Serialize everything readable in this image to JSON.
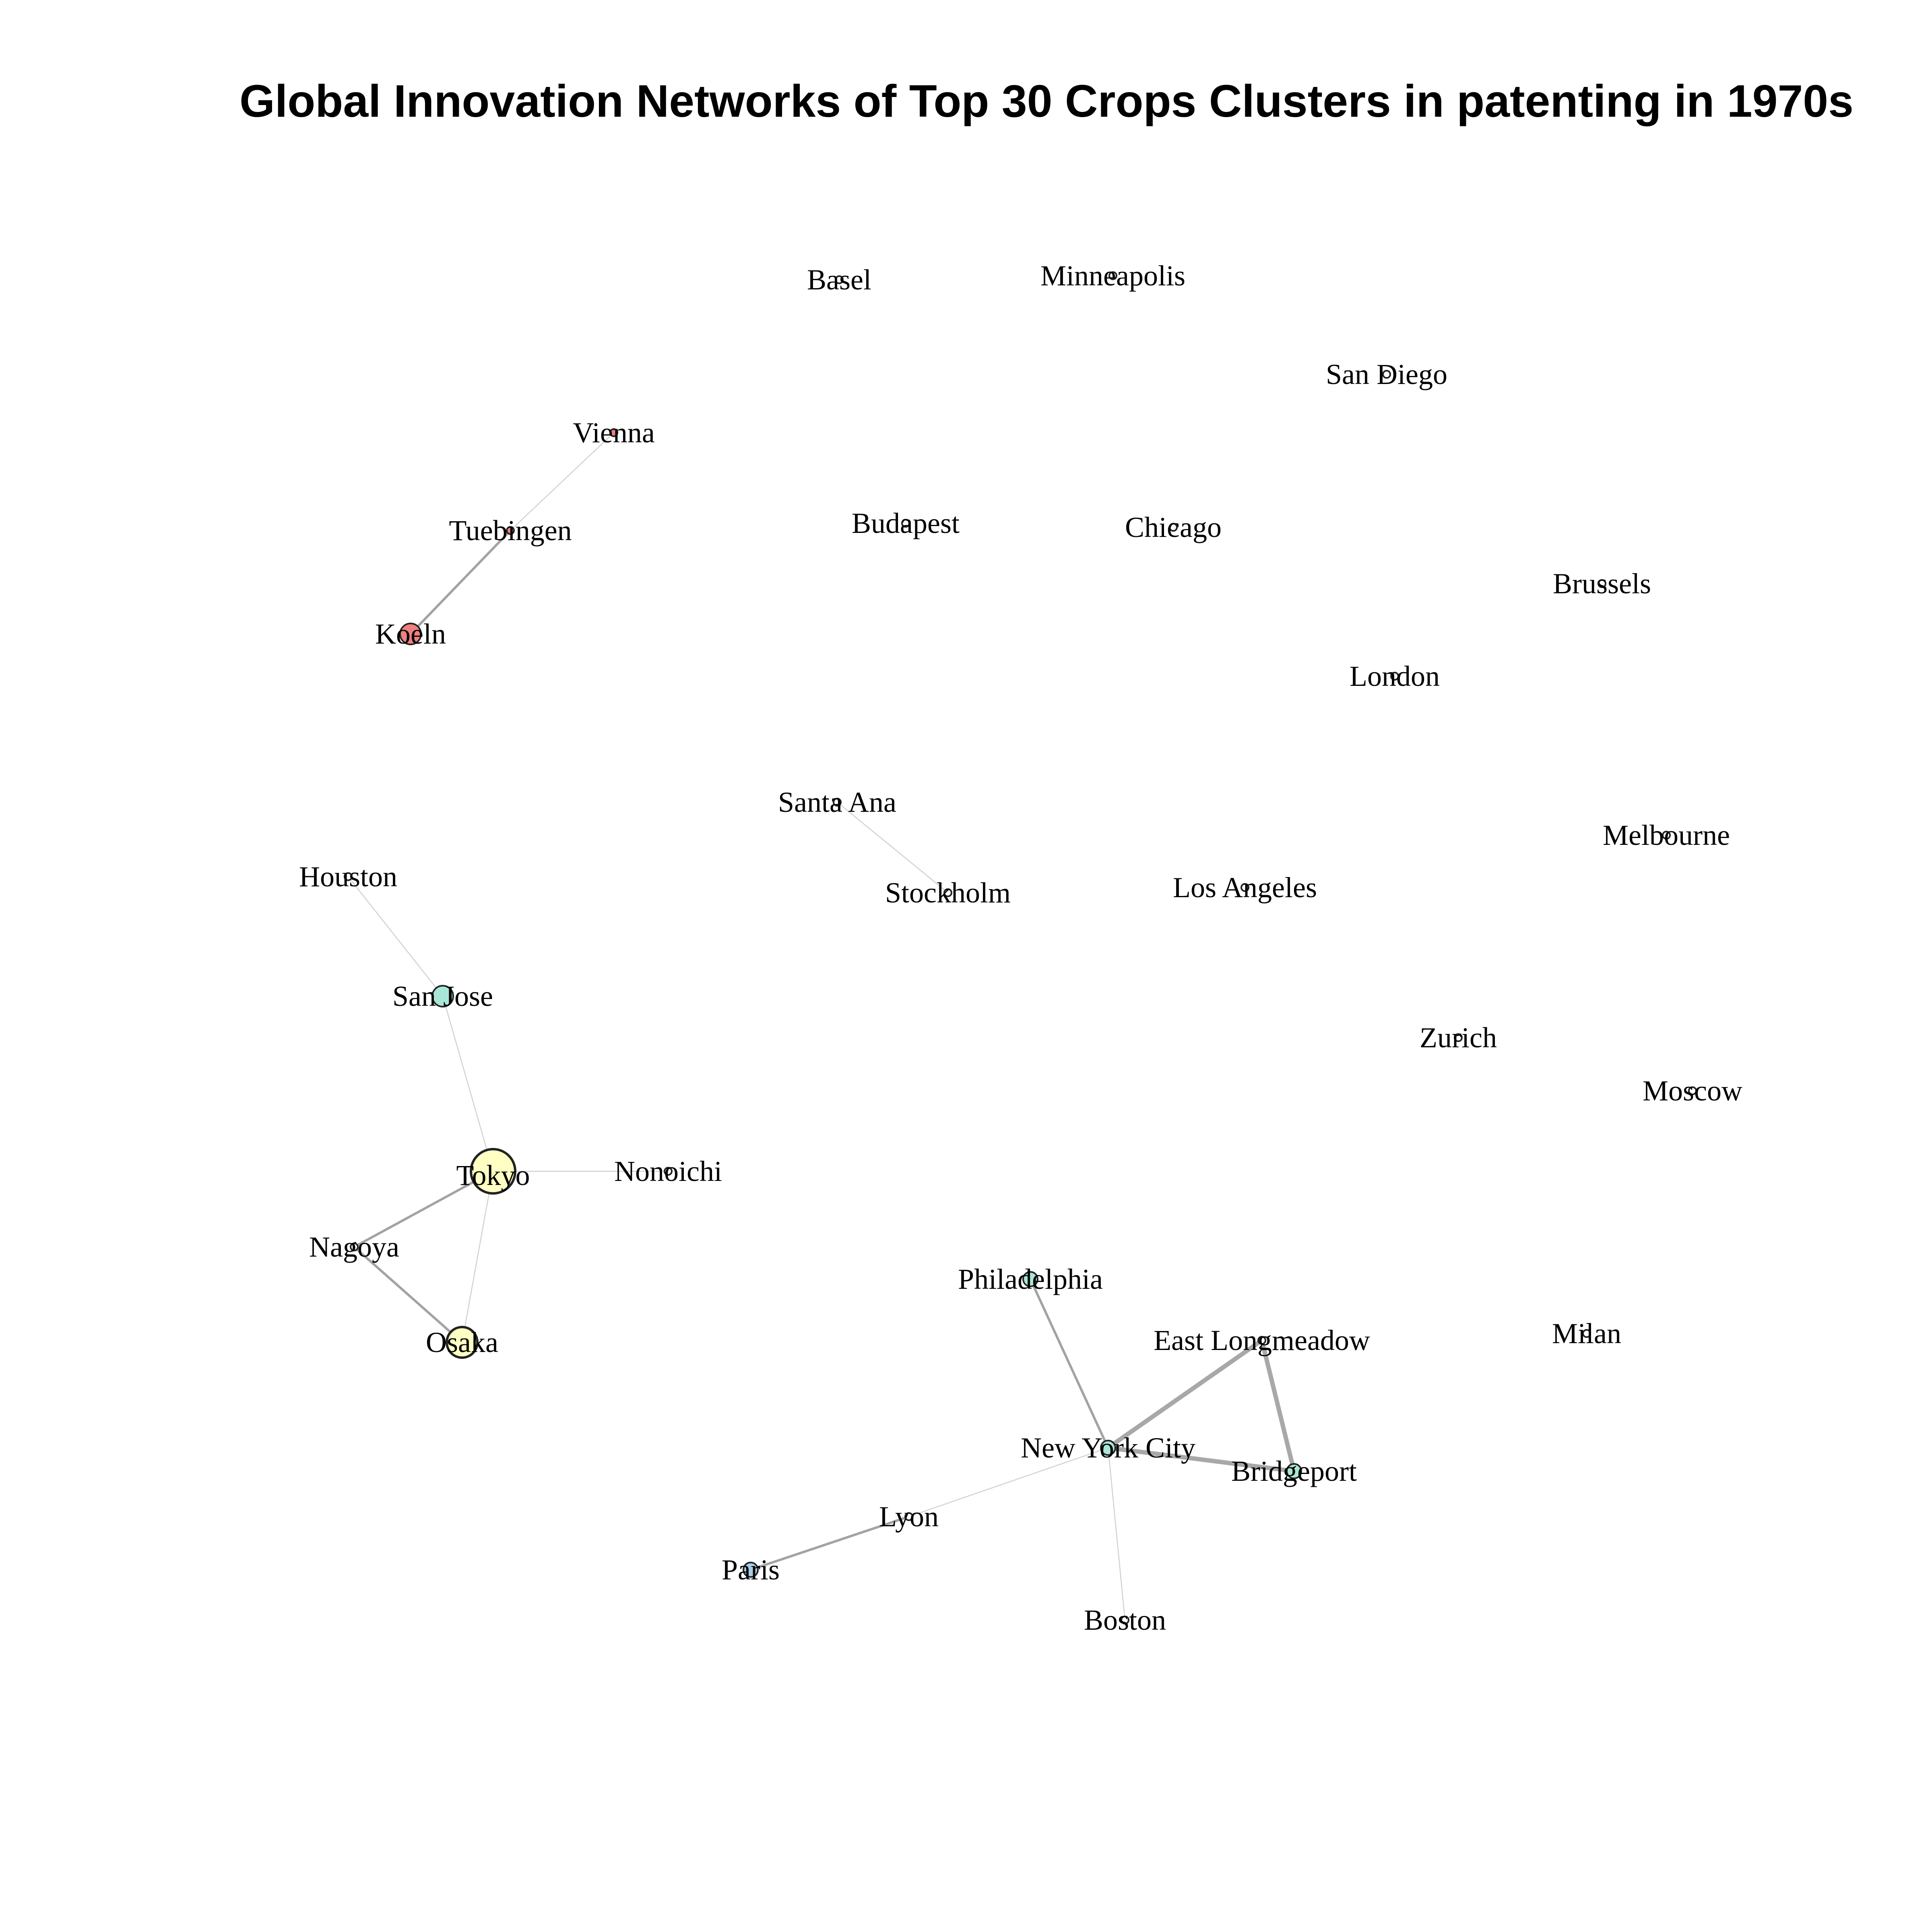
{
  "title": "Global Innovation Networks of Top 30 Crops Clusters in patenting in 1970s",
  "colors": {
    "edge": "#999999",
    "node_stroke": "#222222",
    "cluster_red": "#f08080",
    "cluster_yellow": "#ffffc4",
    "cluster_teal": "#a8e6d8",
    "cluster_blue": "#a9cce3",
    "isolate": "#ffffff"
  },
  "nodes": [
    {
      "id": "basel",
      "label": "Basel",
      "color": "isolate",
      "size": 1
    },
    {
      "id": "minneapolis",
      "label": "Minneapolis",
      "color": "isolate",
      "size": 1
    },
    {
      "id": "san-diego",
      "label": "San Diego",
      "color": "isolate",
      "size": 1
    },
    {
      "id": "vienna",
      "label": "Vienna",
      "color": "cluster_red",
      "size": 1
    },
    {
      "id": "tuebingen",
      "label": "Tuebingen",
      "color": "cluster_red",
      "size": 1
    },
    {
      "id": "koeln",
      "label": "Koeln",
      "color": "cluster_red",
      "size": 3
    },
    {
      "id": "budapest",
      "label": "Budapest",
      "color": "isolate",
      "size": 1
    },
    {
      "id": "chicago",
      "label": "Chicago",
      "color": "isolate",
      "size": 1
    },
    {
      "id": "brussels",
      "label": "Brussels",
      "color": "isolate",
      "size": 1
    },
    {
      "id": "london",
      "label": "London",
      "color": "isolate",
      "size": 1
    },
    {
      "id": "santa-ana",
      "label": "Santa Ana",
      "color": "isolate",
      "size": 1
    },
    {
      "id": "stockholm",
      "label": "Stockholm",
      "color": "isolate",
      "size": 1
    },
    {
      "id": "melbourne",
      "label": "Melbourne",
      "color": "isolate",
      "size": 1
    },
    {
      "id": "houston",
      "label": "Houston",
      "color": "isolate",
      "size": 1
    },
    {
      "id": "los-angeles",
      "label": "Los Angeles",
      "color": "isolate",
      "size": 1
    },
    {
      "id": "san-jose",
      "label": "San Jose",
      "color": "cluster_teal",
      "size": 3
    },
    {
      "id": "zurich",
      "label": "Zurich",
      "color": "isolate",
      "size": 1
    },
    {
      "id": "moscow",
      "label": "Moscow",
      "color": "isolate",
      "size": 1
    },
    {
      "id": "tokyo",
      "label": "Tokyo",
      "color": "cluster_yellow",
      "size": 7
    },
    {
      "id": "nonoichi",
      "label": "Nonoichi",
      "color": "isolate",
      "size": 1
    },
    {
      "id": "nagoya",
      "label": "Nagoya",
      "color": "isolate",
      "size": 1
    },
    {
      "id": "osaka",
      "label": "Osaka",
      "color": "cluster_yellow",
      "size": 4
    },
    {
      "id": "philadelphia",
      "label": "Philadelphia",
      "color": "cluster_teal",
      "size": 2
    },
    {
      "id": "east-longmeadow",
      "label": "East Longmeadow",
      "color": "isolate",
      "size": 1
    },
    {
      "id": "milan",
      "label": "Milan",
      "color": "isolate",
      "size": 1
    },
    {
      "id": "new-york-city",
      "label": "New York City",
      "color": "cluster_teal",
      "size": 2
    },
    {
      "id": "bridgeport",
      "label": "Bridgeport",
      "color": "cluster_teal",
      "size": 2
    },
    {
      "id": "lyon",
      "label": "Lyon",
      "color": "isolate",
      "size": 1
    },
    {
      "id": "paris",
      "label": "Paris",
      "color": "cluster_blue",
      "size": 2
    },
    {
      "id": "boston",
      "label": "Boston",
      "color": "isolate",
      "size": 1
    }
  ],
  "edges": [
    {
      "source": "vienna",
      "target": "tuebingen",
      "weight": 1
    },
    {
      "source": "tuebingen",
      "target": "koeln",
      "weight": 3
    },
    {
      "source": "santa-ana",
      "target": "stockholm",
      "weight": 1
    },
    {
      "source": "houston",
      "target": "san-jose",
      "weight": 1
    },
    {
      "source": "san-jose",
      "target": "tokyo",
      "weight": 1
    },
    {
      "source": "tokyo",
      "target": "nonoichi",
      "weight": 1
    },
    {
      "source": "tokyo",
      "target": "nagoya",
      "weight": 4
    },
    {
      "source": "tokyo",
      "target": "osaka",
      "weight": 1
    },
    {
      "source": "nagoya",
      "target": "osaka",
      "weight": 3
    },
    {
      "source": "philadelphia",
      "target": "new-york-city",
      "weight": 3
    },
    {
      "source": "new-york-city",
      "target": "east-longmeadow",
      "weight": 6
    },
    {
      "source": "east-longmeadow",
      "target": "bridgeport",
      "weight": 6
    },
    {
      "source": "new-york-city",
      "target": "bridgeport",
      "weight": 6
    },
    {
      "source": "new-york-city",
      "target": "lyon",
      "weight": 1
    },
    {
      "source": "lyon",
      "target": "paris",
      "weight": 3
    },
    {
      "source": "new-york-city",
      "target": "boston",
      "weight": 1
    }
  ]
}
